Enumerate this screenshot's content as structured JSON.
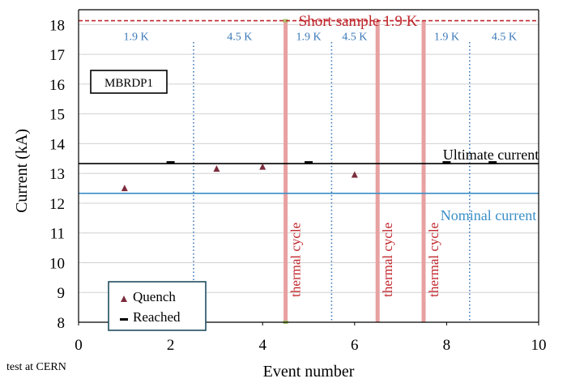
{
  "chart_data": {
    "type": "scatter",
    "title": "",
    "xlabel": "Event number",
    "ylabel": "Current (kA)",
    "xlim": [
      0,
      10
    ],
    "ylim": [
      8,
      18.5
    ],
    "x_ticks": [
      "0",
      "2",
      "4",
      "6",
      "8",
      "10"
    ],
    "y_ticks": [
      "8",
      "9",
      "10",
      "11",
      "12",
      "13",
      "14",
      "15",
      "16",
      "17",
      "18"
    ],
    "grid": "horizontal",
    "magnet_label": "MBRDP1",
    "footnote": "test at CERN",
    "series": [
      {
        "name": "Quench",
        "marker": "triangle",
        "color": "#7b2c3c",
        "points": [
          {
            "x": 1,
            "y": 12.5
          },
          {
            "x": 3,
            "y": 13.15
          },
          {
            "x": 4,
            "y": 13.22
          },
          {
            "x": 6,
            "y": 12.95
          }
        ]
      },
      {
        "name": "Reached",
        "marker": "dash",
        "color": "#000000",
        "points": [
          {
            "x": 2,
            "y": 13.37
          },
          {
            "x": 5,
            "y": 13.37
          },
          {
            "x": 8,
            "y": 13.37
          },
          {
            "x": 9,
            "y": 13.37
          }
        ]
      }
    ],
    "reference_lines": [
      {
        "label": "Short sample 1.9 K",
        "y": 18.13,
        "color": "#c0272d",
        "style": "dashed"
      },
      {
        "label": "Ultimate current",
        "y": 13.33,
        "color": "#000000",
        "style": "solid"
      },
      {
        "label": "Nominal current",
        "y": 12.33,
        "color": "#3a8fc7",
        "style": "solid"
      }
    ],
    "temperature_boundaries": [
      2.5,
      5.5,
      8.5
    ],
    "temperature_labels": [
      {
        "text": "1.9 K",
        "x": 1.25
      },
      {
        "text": "4.5 K",
        "x": 3.5
      },
      {
        "text": "1.9 K",
        "x": 5.0
      },
      {
        "text": "4.5 K",
        "x": 6.0
      },
      {
        "text": "1.9 K",
        "x": 8.0
      },
      {
        "text": "4.5 K",
        "x": 9.25
      }
    ],
    "thermal_cycles": [
      {
        "x": 4.5,
        "label": "thermal cycle"
      },
      {
        "x": 6.5,
        "label": "thermal cycle"
      },
      {
        "x": 7.5,
        "label": "thermal cycle"
      }
    ],
    "colors": {
      "boundary": "#3a78b8",
      "thermal_cycle": "#e8a0a0",
      "thermal_text": "#c0272d",
      "temperature_text": "#3a78b8",
      "grid": "#d0d0d0",
      "legend_border": "#1f4e5f",
      "marker_top": "#a6c36a"
    }
  }
}
